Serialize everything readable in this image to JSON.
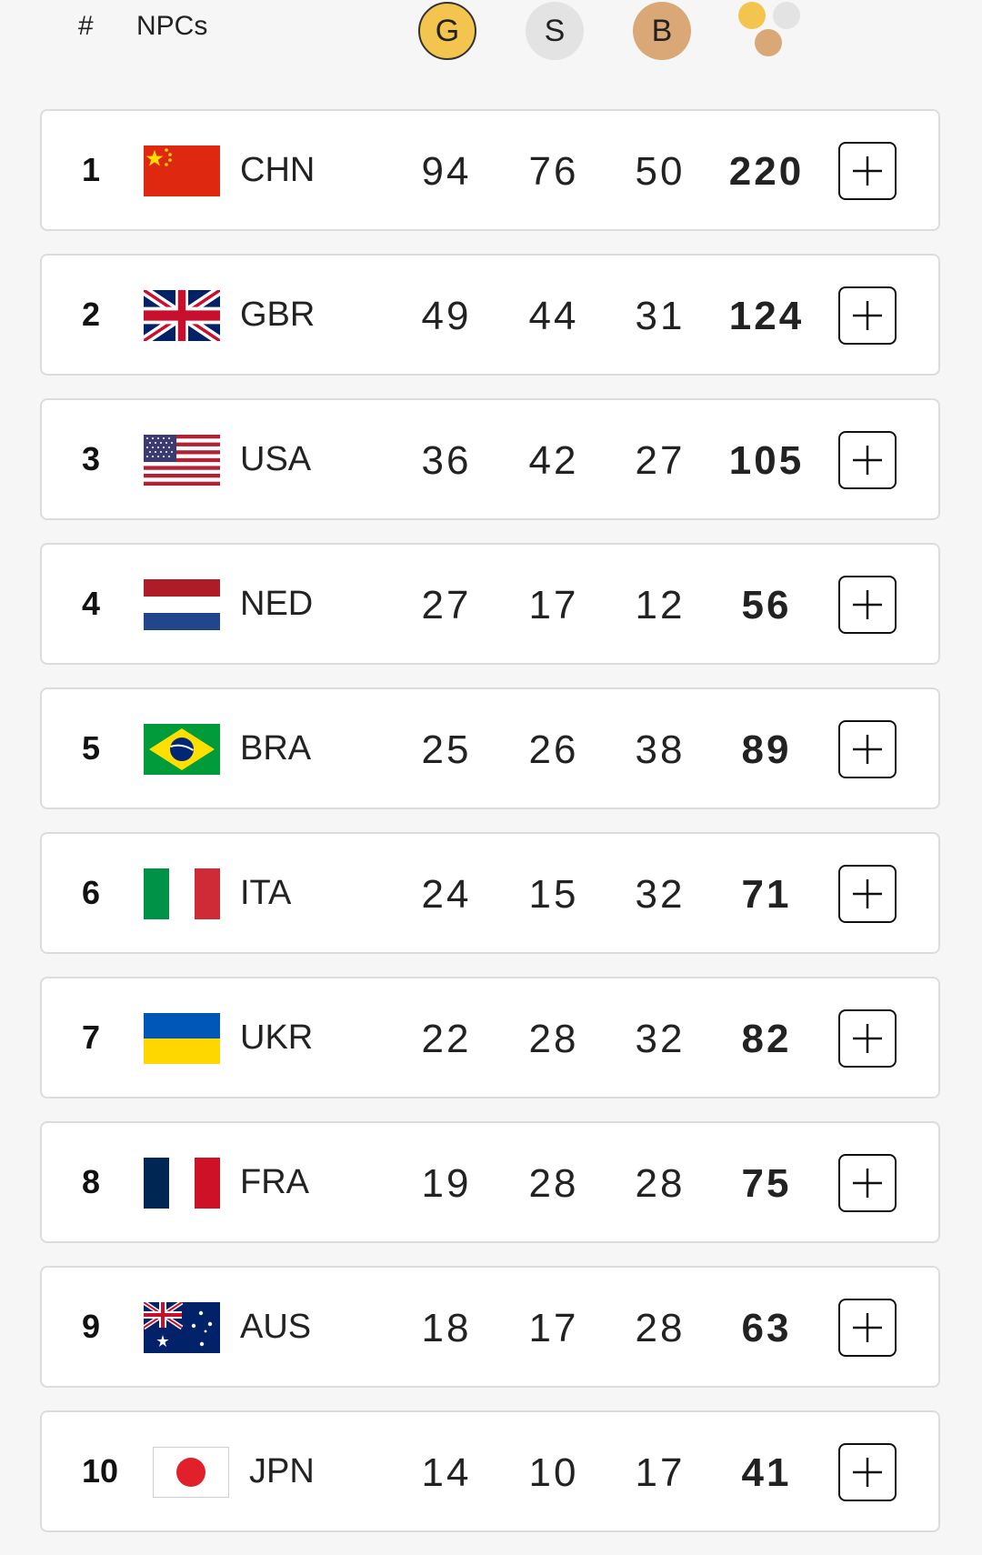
{
  "header": {
    "rank_label": "#",
    "npc_label": "NPCs",
    "gold_label": "G",
    "silver_label": "S",
    "bronze_label": "B"
  },
  "colors": {
    "gold": "#f4c54e",
    "silver": "#e3e3e3",
    "bronze": "#d9a876",
    "background": "#f6f6f7"
  },
  "rows": [
    {
      "rank": "1",
      "code": "CHN",
      "flag": "china-flag",
      "gold": "94",
      "silver": "76",
      "bronze": "50",
      "total": "220"
    },
    {
      "rank": "2",
      "code": "GBR",
      "flag": "uk-flag",
      "gold": "49",
      "silver": "44",
      "bronze": "31",
      "total": "124"
    },
    {
      "rank": "3",
      "code": "USA",
      "flag": "usa-flag",
      "gold": "36",
      "silver": "42",
      "bronze": "27",
      "total": "105"
    },
    {
      "rank": "4",
      "code": "NED",
      "flag": "netherlands-flag",
      "gold": "27",
      "silver": "17",
      "bronze": "12",
      "total": "56"
    },
    {
      "rank": "5",
      "code": "BRA",
      "flag": "brazil-flag",
      "gold": "25",
      "silver": "26",
      "bronze": "38",
      "total": "89"
    },
    {
      "rank": "6",
      "code": "ITA",
      "flag": "italy-flag",
      "gold": "24",
      "silver": "15",
      "bronze": "32",
      "total": "71"
    },
    {
      "rank": "7",
      "code": "UKR",
      "flag": "ukraine-flag",
      "gold": "22",
      "silver": "28",
      "bronze": "32",
      "total": "82"
    },
    {
      "rank": "8",
      "code": "FRA",
      "flag": "france-flag",
      "gold": "19",
      "silver": "28",
      "bronze": "28",
      "total": "75"
    },
    {
      "rank": "9",
      "code": "AUS",
      "flag": "australia-flag",
      "gold": "18",
      "silver": "17",
      "bronze": "28",
      "total": "63"
    },
    {
      "rank": "10",
      "code": "JPN",
      "flag": "japan-flag",
      "gold": "14",
      "silver": "10",
      "bronze": "17",
      "total": "41"
    }
  ]
}
